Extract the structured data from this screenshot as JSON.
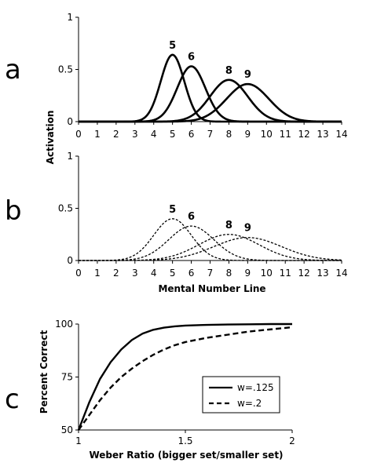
{
  "chart_data": [
    {
      "id": "a",
      "panel_label": "a",
      "type": "line",
      "xlim": [
        0,
        14
      ],
      "ylim": [
        0,
        1
      ],
      "x_ticks": [
        "0",
        "1",
        "2",
        "3",
        "4",
        "5",
        "6",
        "7",
        "8",
        "9",
        "10",
        "11",
        "12",
        "13",
        "14"
      ],
      "y_ticks": [
        "0",
        "0.5",
        "1"
      ],
      "line_style": "solid",
      "series": [
        {
          "label": "5",
          "mean": 5,
          "sd": 0.625,
          "peak": 0.64
        },
        {
          "label": "6",
          "mean": 6,
          "sd": 0.75,
          "peak": 0.53
        },
        {
          "label": "8",
          "mean": 8,
          "sd": 1.0,
          "peak": 0.4
        },
        {
          "label": "9",
          "mean": 9,
          "sd": 1.125,
          "peak": 0.36
        }
      ]
    },
    {
      "id": "b",
      "panel_label": "b",
      "type": "line",
      "xlim": [
        0,
        14
      ],
      "ylim": [
        0,
        1
      ],
      "x_ticks": [
        "0",
        "1",
        "2",
        "3",
        "4",
        "5",
        "6",
        "7",
        "8",
        "9",
        "10",
        "11",
        "12",
        "13",
        "14"
      ],
      "y_ticks": [
        "0",
        "0.5",
        "1"
      ],
      "line_style": "dotted",
      "series": [
        {
          "label": "5",
          "mean": 5,
          "sd": 1.0,
          "peak": 0.4
        },
        {
          "label": "6",
          "mean": 6,
          "sd": 1.2,
          "peak": 0.33
        },
        {
          "label": "8",
          "mean": 8,
          "sd": 1.6,
          "peak": 0.25
        },
        {
          "label": "9",
          "mean": 9,
          "sd": 1.8,
          "peak": 0.22
        }
      ]
    },
    {
      "id": "c",
      "panel_label": "c",
      "type": "line",
      "xlim": [
        1,
        2
      ],
      "ylim": [
        50,
        100
      ],
      "x_ticks": [
        "1",
        "1.5",
        "2"
      ],
      "y_ticks": [
        "50",
        "75",
        "100"
      ],
      "xlabel": "Weber Ratio (bigger set/smaller set)",
      "ylabel": "Percent Correct",
      "legend_position": "bottom-right",
      "series": [
        {
          "name": "w=.125",
          "style": "solid",
          "x": [
            1.0,
            1.05,
            1.1,
            1.15,
            1.2,
            1.25,
            1.3,
            1.35,
            1.4,
            1.45,
            1.5,
            1.6,
            1.7,
            1.8,
            1.9,
            2.0
          ],
          "y": [
            50,
            63,
            74,
            82,
            88,
            92.5,
            95.5,
            97.3,
            98.3,
            98.9,
            99.3,
            99.6,
            99.8,
            99.9,
            100,
            100
          ]
        },
        {
          "name": "w=.2",
          "style": "dashed",
          "x": [
            1.0,
            1.05,
            1.1,
            1.15,
            1.2,
            1.25,
            1.3,
            1.35,
            1.4,
            1.45,
            1.5,
            1.6,
            1.7,
            1.8,
            1.9,
            2.0
          ],
          "y": [
            50,
            57,
            64,
            70,
            75,
            79,
            82.5,
            85.5,
            88,
            90,
            91.5,
            93.5,
            95,
            96.5,
            97.5,
            98.5
          ]
        }
      ]
    }
  ],
  "shared": {
    "ylabel_ab": "Activation",
    "xlabel_ab": "Mental Number Line"
  }
}
